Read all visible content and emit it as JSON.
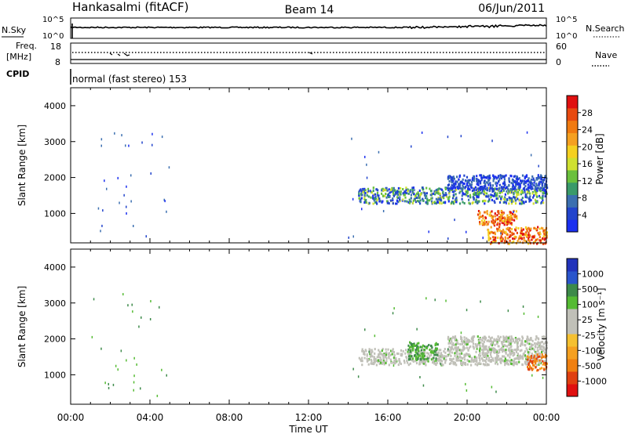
{
  "header": {
    "station": "Hankasalmi (fitACF)",
    "beam": "Beam 14",
    "date": "06/Jun/2011"
  },
  "noise_panel": {
    "left_label": "N.Sky",
    "right_label": "N.Search",
    "ytick_top": "10^5",
    "ytick_bottom": "10^0"
  },
  "freq_panel": {
    "left_label_1": "Freq.",
    "left_label_2": "[MHz]",
    "right_label": "Nave",
    "ytick_top_left": "18",
    "ytick_bottom_left": "8",
    "ytick_top_right": "60",
    "ytick_bottom_right": "0"
  },
  "cpid": {
    "label": "CPID",
    "text": "normal (fast stereo) 153"
  },
  "power_colorbar": {
    "label": "Power [dB]",
    "ticks": [
      "4",
      "8",
      "12",
      "16",
      "20",
      "24",
      "28"
    ],
    "colors": [
      "#1a2ff0",
      "#2244cc",
      "#3b6fb0",
      "#3a9a6a",
      "#6ac03c",
      "#cfe030",
      "#f5d020",
      "#f5a020",
      "#f07a10",
      "#e84a10",
      "#e01010"
    ]
  },
  "velocity_colorbar": {
    "label": "Velocity [m s⁻¹]",
    "ticks": [
      "1000",
      "500",
      "100",
      "25",
      "-25",
      "-100",
      "-500",
      "-1000"
    ],
    "colors": [
      "#2233bb",
      "#2a55cc",
      "#3d8a4a",
      "#55bb33",
      "#c0c0b8",
      "#c0c0b8",
      "#f5c030",
      "#f5a020",
      "#f08010",
      "#e04010",
      "#e01010"
    ]
  },
  "chart_data": {
    "type": "heatmap",
    "xlabel": "Time UT",
    "ylabel": "Slant Range [km]",
    "x_ticks": [
      "00:00",
      "04:00",
      "08:00",
      "12:00",
      "16:00",
      "20:00",
      "00:00"
    ],
    "xlim_hours": [
      0,
      24
    ],
    "ylim_km": [
      180,
      4500
    ],
    "y_ticks": [
      1000,
      2000,
      3000,
      4000
    ],
    "panels": [
      {
        "name": "power",
        "regions": [
          {
            "t": [
              14.5,
              24
            ],
            "r": [
              1300,
              1750
            ],
            "level": "mid"
          },
          {
            "t": [
              19.0,
              24
            ],
            "r": [
              1700,
              2100
            ],
            "level": "low"
          },
          {
            "t": [
              21.0,
              24
            ],
            "r": [
              180,
              650
            ],
            "level": "high"
          },
          {
            "t": [
              20.5,
              22.5
            ],
            "r": [
              700,
              1100
            ],
            "level": "high"
          }
        ]
      },
      {
        "name": "velocity",
        "regions": [
          {
            "t": [
              14.5,
              24
            ],
            "r": [
              1300,
              1750
            ],
            "level": "ground"
          },
          {
            "t": [
              19.0,
              24
            ],
            "r": [
              1700,
              2100
            ],
            "level": "ground"
          },
          {
            "t": [
              23.0,
              24
            ],
            "r": [
              1150,
              1600
            ],
            "level": "negative"
          },
          {
            "t": [
              17.0,
              18.5
            ],
            "r": [
              1450,
              1950
            ],
            "level": "positive"
          }
        ]
      }
    ]
  }
}
